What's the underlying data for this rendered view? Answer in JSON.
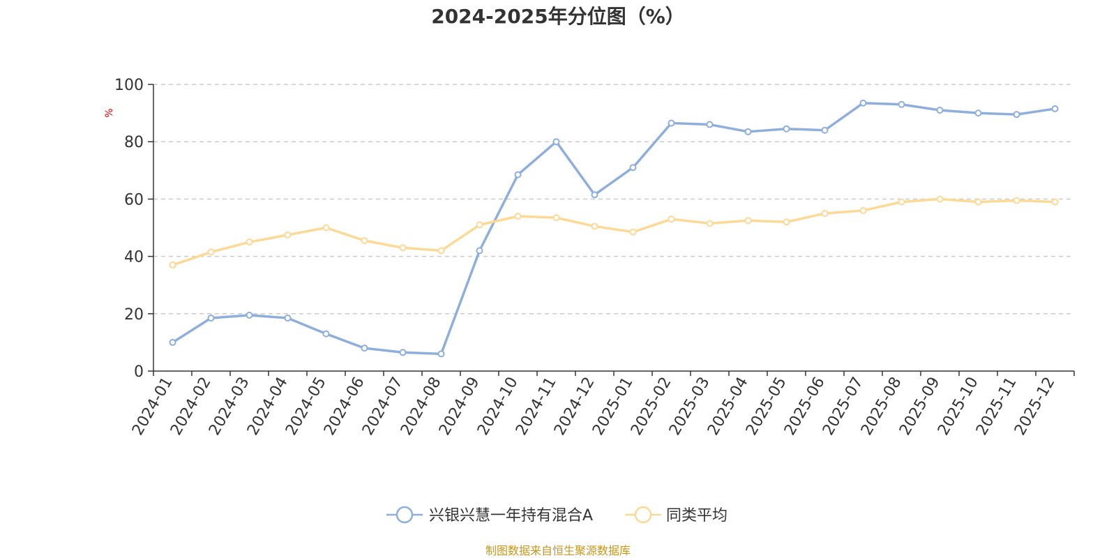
{
  "title": "2024-2025年分位图（%）",
  "source": "制图数据来自恒生聚源数据库",
  "chart_data": {
    "type": "line",
    "title": "2024-2025年分位图（%）",
    "ylabel": "%",
    "xlabel": "",
    "ylim": [
      0,
      100
    ],
    "yticks": [
      "0",
      "20",
      "40",
      "60",
      "80",
      "100"
    ],
    "grid": true,
    "legend_position": "bottom-center",
    "categories": [
      "2024-01",
      "2024-02",
      "2024-03",
      "2024-04",
      "2024-05",
      "2024-06",
      "2024-07",
      "2024-08",
      "2024-09",
      "2024-10",
      "2024-11",
      "2024-12",
      "2025-01",
      "2025-02",
      "2025-03",
      "2025-04",
      "2025-05",
      "2025-06",
      "2025-07",
      "2025-08",
      "2025-09",
      "2025-10",
      "2025-11",
      "2025-12"
    ],
    "series": [
      {
        "name": "兴银兴慧一年持有混合A",
        "color": "#8eaedb",
        "values": [
          10,
          18.5,
          19.5,
          18.5,
          13,
          8,
          6.5,
          6,
          42,
          68.5,
          80,
          61.5,
          71,
          86.5,
          86,
          83.5,
          84.5,
          84,
          93.5,
          93,
          91,
          90,
          89.5,
          91.5
        ]
      },
      {
        "name": "同类平均",
        "color": "#fdd996",
        "values": [
          37,
          41.5,
          45,
          47.5,
          50,
          45.5,
          43,
          42,
          51,
          54,
          53.5,
          50.5,
          48.5,
          53,
          51.5,
          52.5,
          52,
          55,
          56,
          59,
          60,
          59,
          59.5,
          59
        ]
      }
    ]
  }
}
